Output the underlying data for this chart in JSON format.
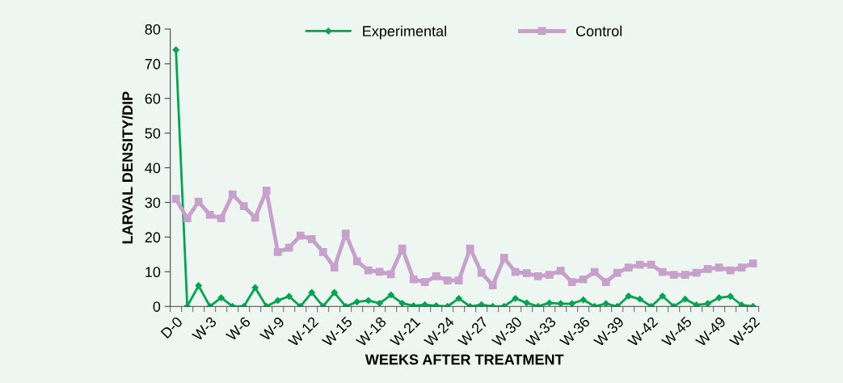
{
  "chart_data": {
    "type": "line",
    "xlabel": "WEEKS AFTER TREATMENT",
    "ylabel": "LARVAL DENSITY/DIP",
    "categories": [
      "D-0",
      null,
      null,
      "W-3",
      null,
      null,
      "W-6",
      null,
      null,
      "W-9",
      null,
      null,
      "W-12",
      null,
      null,
      "W-15",
      null,
      null,
      "W-18",
      null,
      null,
      "W-21",
      null,
      null,
      "W-24",
      null,
      null,
      "W-27",
      null,
      null,
      "W-30",
      null,
      null,
      "W-33",
      null,
      null,
      "W-36",
      null,
      null,
      "W-39",
      null,
      null,
      "W-42",
      null,
      null,
      "W-45",
      null,
      null,
      "W-49",
      null,
      null,
      "W-52"
    ],
    "series": [
      {
        "name": "Experimental",
        "color": "#00a550",
        "marker": "diamond",
        "values": [
          74,
          0,
          6.0,
          0,
          2.5,
          0,
          0,
          5.4,
          0,
          1.7,
          2.9,
          0,
          4.0,
          0,
          4.0,
          0,
          1.3,
          1.7,
          0.9,
          3.3,
          0.9,
          0.2,
          0.5,
          0.2,
          0,
          2.3,
          0,
          0.5,
          0,
          0,
          2.3,
          1.0,
          0,
          1.0,
          0.8,
          0.8,
          1.9,
          0,
          0.8,
          0,
          3.0,
          2.1,
          0,
          3.0,
          0,
          2.1,
          0.4,
          0.8,
          2.5,
          2.9,
          0.4,
          0
        ]
      },
      {
        "name": "Control",
        "color": "#c8a0cc",
        "marker": "square",
        "values": [
          31.0,
          25.4,
          30.2,
          26.4,
          25.4,
          32.3,
          28.9,
          25.6,
          33.4,
          15.7,
          16.9,
          20.4,
          19.4,
          15.7,
          11.2,
          21.0,
          13.0,
          10.4,
          10.0,
          9.3,
          16.7,
          7.8,
          7.0,
          8.7,
          7.5,
          7.5,
          16.7,
          9.7,
          6.1,
          14.0,
          9.9,
          9.6,
          8.7,
          9.1,
          10.3,
          7.0,
          7.8,
          9.9,
          7.0,
          9.7,
          11.2,
          12.0,
          12.0,
          9.9,
          9.1,
          9.1,
          9.7,
          10.8,
          11.2,
          10.4,
          11.2,
          12.4
        ]
      }
    ],
    "ylim": [
      0,
      80
    ],
    "yticks": [
      0,
      10,
      20,
      30,
      40,
      50,
      60,
      70,
      80
    ],
    "grid": false,
    "legend": "top",
    "line_style": "solid"
  }
}
